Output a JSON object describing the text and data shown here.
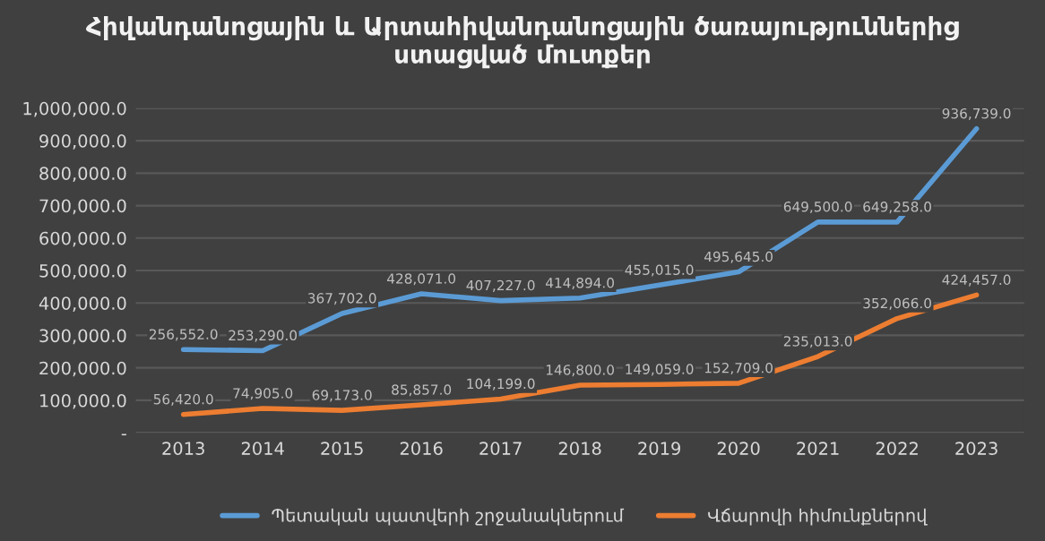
{
  "chart_data": {
    "type": "line",
    "title": "Հիվանդանոցային և Արտահիվանդանոցային ծառայություններից\nստացված մուտքեր",
    "categories": [
      "2013",
      "2014",
      "2015",
      "2016",
      "2017",
      "2018",
      "2019",
      "2020",
      "2021",
      "2022",
      "2023"
    ],
    "series": [
      {
        "name": "Պետական պատվերի շրջանակներում",
        "color": "#5b9bd5",
        "values": [
          256552,
          253290,
          367702,
          428071,
          407227,
          414894,
          455015,
          495645,
          649500,
          649258,
          936739
        ],
        "value_labels": [
          "256,552.0",
          "253,290.0",
          "367,702.0",
          "428,071.0",
          "407,227.0",
          "414,894.0",
          "455,015.0",
          "495,645.0",
          "649,500.0",
          "649,258.0",
          "936,739.0"
        ]
      },
      {
        "name": "Վճարովի հիմունքներով",
        "color": "#ed7d31",
        "values": [
          56420,
          74905,
          69173,
          85857,
          104199,
          146800,
          149059,
          152709,
          235013,
          352066,
          424457
        ],
        "value_labels": [
          "56,420.0",
          "74,905.0",
          "69,173.0",
          "85,857.0",
          "104,199.0",
          "146,800.0",
          "149,059.0",
          "152,709.0",
          "235,013.0",
          "352,066.0",
          "424,457.0"
        ]
      }
    ],
    "ylim": [
      0,
      1000000
    ],
    "yticks": [
      {
        "value": 0,
        "label": "-"
      },
      {
        "value": 100000,
        "label": "100,000.0"
      },
      {
        "value": 200000,
        "label": "200,000.0"
      },
      {
        "value": 300000,
        "label": "300,000.0"
      },
      {
        "value": 400000,
        "label": "400,000.0"
      },
      {
        "value": 500000,
        "label": "500,000.0"
      },
      {
        "value": 600000,
        "label": "600,000.0"
      },
      {
        "value": 700000,
        "label": "700,000.0"
      },
      {
        "value": 800000,
        "label": "800,000.0"
      },
      {
        "value": 900000,
        "label": "900,000.0"
      },
      {
        "value": 1000000,
        "label": "1,000,000.0"
      }
    ],
    "grid": "y",
    "legend": "bottom",
    "marker": "none",
    "line_style": "solid"
  }
}
